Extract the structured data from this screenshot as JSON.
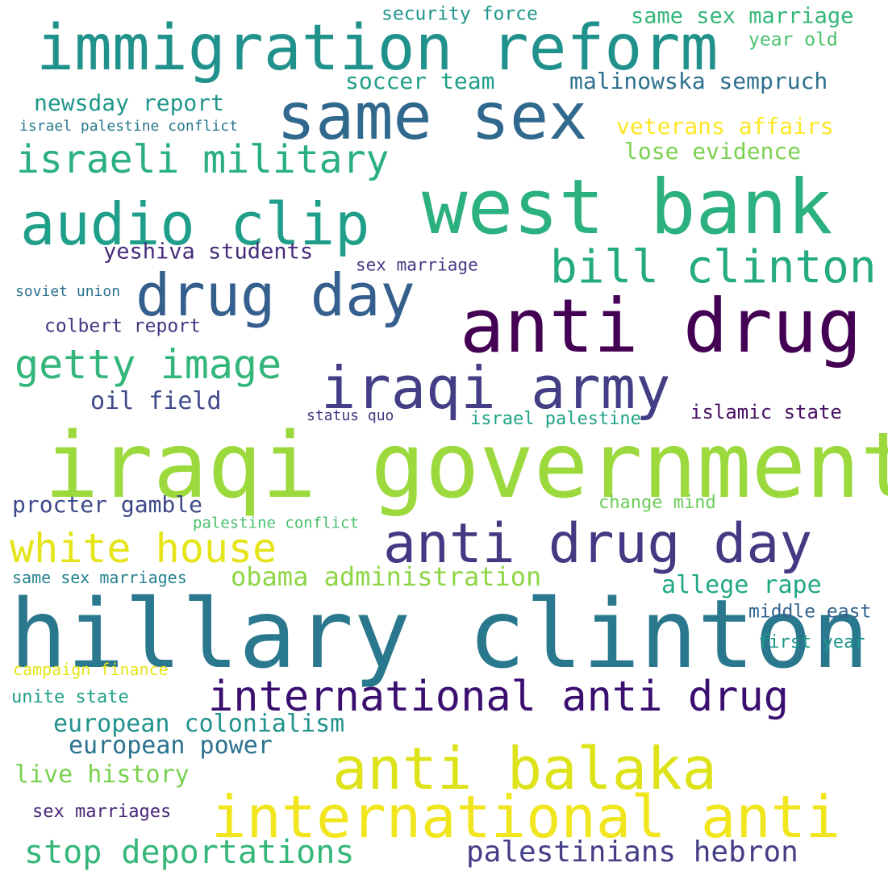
{
  "words": [
    {
      "text": "iraqi government",
      "color": "#9bd93c"
    },
    {
      "text": "hillary clinton",
      "color": "#2a788e"
    },
    {
      "text": "west bank",
      "color": "#2bb07f"
    },
    {
      "text": "anti drug",
      "color": "#440154"
    },
    {
      "text": "immigration reform",
      "color": "#21918c"
    },
    {
      "text": "same sex",
      "color": "#31688e"
    },
    {
      "text": "audio clip",
      "color": "#1f9e89"
    },
    {
      "text": "drug day",
      "color": "#355f8d"
    },
    {
      "text": "iraqi army",
      "color": "#433e85"
    },
    {
      "text": "anti drug day",
      "color": "#443983"
    },
    {
      "text": "anti balaka",
      "color": "#dde318"
    },
    {
      "text": "international anti",
      "color": "#f1e51d"
    },
    {
      "text": "international anti drug",
      "color": "#3b0f70"
    },
    {
      "text": "bill clinton",
      "color": "#25ab82"
    },
    {
      "text": "israeli military",
      "color": "#2ab07f"
    },
    {
      "text": "getty image",
      "color": "#32b67a"
    },
    {
      "text": "white house",
      "color": "#e5e419"
    },
    {
      "text": "stop deportations",
      "color": "#35b779"
    },
    {
      "text": "palestinians hebron",
      "color": "#433e85"
    },
    {
      "text": "obama administration",
      "color": "#8ed645"
    },
    {
      "text": "european colonialism",
      "color": "#21918c"
    },
    {
      "text": "european power",
      "color": "#2c728e"
    },
    {
      "text": "live history",
      "color": "#7ad151"
    },
    {
      "text": "allege rape",
      "color": "#22a785"
    },
    {
      "text": "procter gamble",
      "color": "#3e4989"
    },
    {
      "text": "oil field",
      "color": "#3e4a89"
    },
    {
      "text": "yeshiva students",
      "color": "#472d7b"
    },
    {
      "text": "colbert report",
      "color": "#453781"
    },
    {
      "text": "newsday report",
      "color": "#1f968b"
    },
    {
      "text": "soccer team",
      "color": "#1f9e89"
    },
    {
      "text": "malinowska sempruch",
      "color": "#2d708e"
    },
    {
      "text": "same sex marriage",
      "color": "#35b779"
    },
    {
      "text": "security force",
      "color": "#1f958b"
    },
    {
      "text": "year old",
      "color": "#4ac16d"
    },
    {
      "text": "veterans affairs",
      "color": "#fde725"
    },
    {
      "text": "lose evidence",
      "color": "#7ad151"
    },
    {
      "text": "israel palestine conflict",
      "color": "#2a788e"
    },
    {
      "text": "sex marriage",
      "color": "#443983"
    },
    {
      "text": "soviet union",
      "color": "#2c728e"
    },
    {
      "text": "status quo",
      "color": "#46327e"
    },
    {
      "text": "israel palestine",
      "color": "#20a386"
    },
    {
      "text": "islamic state",
      "color": "#471063"
    },
    {
      "text": "change mind",
      "color": "#6ccd5a"
    },
    {
      "text": "palestine conflict",
      "color": "#4ac16d"
    },
    {
      "text": "same sex marriages",
      "color": "#26828e"
    },
    {
      "text": "middle east",
      "color": "#33638d"
    },
    {
      "text": "first year",
      "color": "#1f968b"
    },
    {
      "text": "campaign finance",
      "color": "#e5e419"
    },
    {
      "text": "unite state",
      "color": "#1fa088"
    },
    {
      "text": "sex marriages",
      "color": "#482576"
    }
  ]
}
